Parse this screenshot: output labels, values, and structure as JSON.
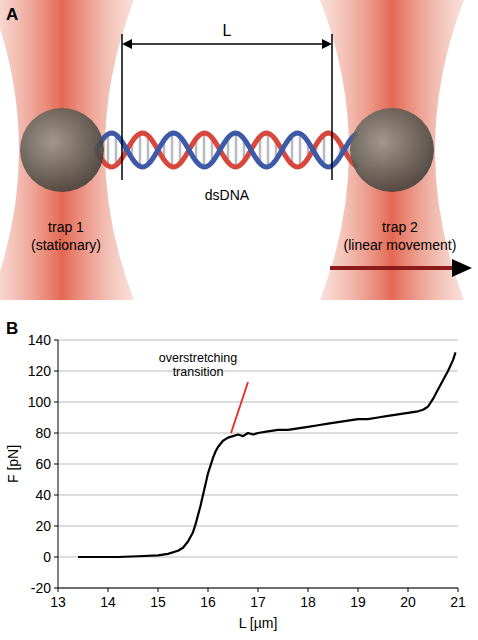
{
  "diagram": {
    "panel_label": "A",
    "length_label": "L",
    "molecule": "dsDNA",
    "traps": [
      {
        "name": "trap 1",
        "note": "(stationary)"
      },
      {
        "name": "trap 2",
        "note": "(linear movement)"
      }
    ]
  },
  "chart_data": {
    "type": "line",
    "panel_label": "B",
    "x_label": "L [µm]",
    "y_label": "F [pN]",
    "x": [
      13.4,
      13.8,
      14.2,
      14.6,
      15.0,
      15.2,
      15.4,
      15.5,
      15.6,
      15.7,
      15.75,
      15.8,
      15.85,
      15.9,
      15.95,
      16.0,
      16.05,
      16.1,
      16.15,
      16.2,
      16.3,
      16.4,
      16.5,
      16.6,
      16.7,
      16.8,
      16.9,
      17.0,
      17.2,
      17.4,
      17.6,
      17.8,
      18.0,
      18.2,
      18.4,
      18.6,
      18.8,
      19.0,
      19.2,
      19.4,
      19.6,
      19.8,
      20.0,
      20.2,
      20.3,
      20.35,
      20.4,
      20.5,
      20.6,
      20.7,
      20.8,
      20.9,
      20.95
    ],
    "values": [
      0,
      0,
      0,
      0.5,
      1,
      2,
      4,
      6,
      10,
      16,
      21,
      27,
      33,
      40,
      47,
      54,
      59,
      64,
      68,
      71,
      75,
      77,
      78,
      79,
      78,
      80,
      79,
      80,
      81,
      82,
      82,
      83,
      84,
      85,
      86,
      87,
      88,
      89,
      89,
      90,
      91,
      92,
      93,
      94,
      95,
      96,
      97,
      102,
      108,
      114,
      120,
      127,
      132
    ],
    "color": "#000000",
    "xlim": [
      13,
      21
    ],
    "xticks": [
      13,
      14,
      15,
      16,
      17,
      18,
      19,
      20,
      21
    ],
    "ylim": [
      -20,
      140
    ],
    "yticks": [
      -20,
      0,
      20,
      40,
      60,
      80,
      100,
      120,
      140
    ],
    "grid": true,
    "annotations": [
      {
        "text": "overstretching transition",
        "x": 16.4,
        "y": 78
      }
    ]
  }
}
